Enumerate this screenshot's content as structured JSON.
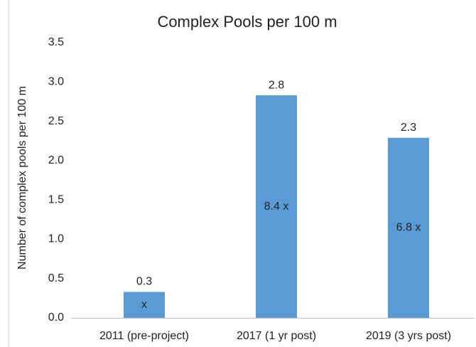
{
  "chart_data": {
    "type": "bar",
    "title": "Complex Pools per 100 m",
    "y_label": "Number of complex pools per 100 m",
    "categories": [
      "2011 (pre-project)",
      "2017 (1 yr post)",
      "2019 (3 yrs post)"
    ],
    "values": [
      0.33,
      2.83,
      2.29
    ],
    "value_labels": [
      "0.3",
      "2.8",
      "2.3"
    ],
    "annotations": [
      "x",
      "8.4 x",
      "6.8 x"
    ],
    "color": "#5b9bd5",
    "ylim": [
      0,
      3.5
    ],
    "yticks": [
      {
        "value": 0,
        "label": "0.0"
      },
      0.5,
      {
        "value": 1,
        "label": "1.0"
      },
      1.5,
      {
        "value": 2,
        "label": "2.0"
      },
      2.5,
      {
        "value": 3,
        "label": "3.0"
      },
      3.5
    ],
    "grid": false
  }
}
